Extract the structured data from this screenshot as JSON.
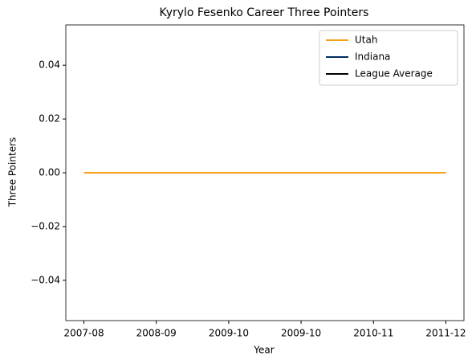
{
  "chart_data": {
    "type": "line",
    "title": "Kyrylo Fesenko Career Three Pointers",
    "xlabel": "Year",
    "ylabel": "Three Pointers",
    "categories": [
      "2007-08",
      "2008-09",
      "2009-10",
      "2009-10",
      "2010-11",
      "2011-12"
    ],
    "series": [
      {
        "name": "Utah",
        "color": "#f9a01b",
        "values": [
          0,
          0,
          0,
          0,
          0,
          0
        ]
      },
      {
        "name": "Indiana",
        "color": "#002d62",
        "values": [
          null,
          null,
          null,
          null,
          null,
          null
        ]
      },
      {
        "name": "League Average",
        "color": "#000000",
        "values": [
          null,
          null,
          null,
          null,
          null,
          null
        ]
      }
    ],
    "ylim": [
      -0.055,
      0.055
    ],
    "yticks": [
      {
        "value": -0.04,
        "label": "−0.04"
      },
      {
        "value": -0.02,
        "label": "−0.02"
      },
      {
        "value": 0,
        "label": "0.00"
      },
      {
        "value": 0.02,
        "label": "0.02"
      },
      {
        "value": 0.04,
        "label": "0.04"
      }
    ],
    "legend": "upper right",
    "grid": false
  }
}
